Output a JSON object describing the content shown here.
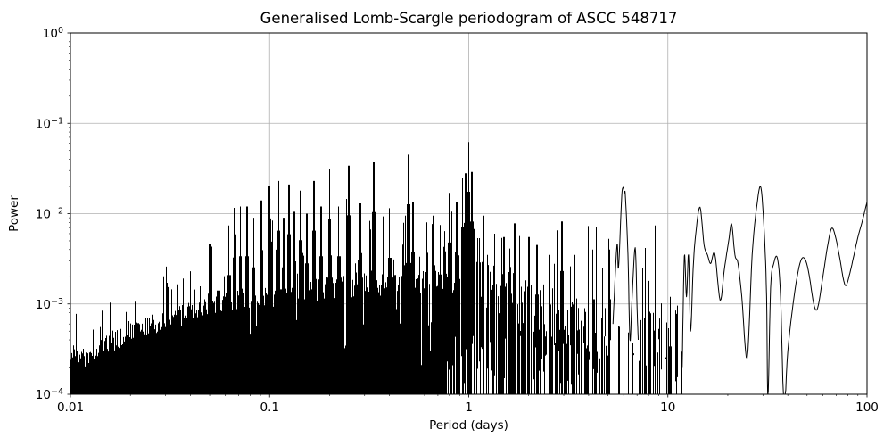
{
  "chart_data": {
    "type": "line",
    "title": "Generalised Lomb-Scargle periodogram of ASCC 548717",
    "xlabel": "Period (days)",
    "ylabel": "Power",
    "xscale": "log",
    "yscale": "log",
    "xlim": [
      0.01,
      100
    ],
    "ylim": [
      0.0001,
      1
    ],
    "grid": true,
    "legend": false,
    "line_color": "#000000",
    "grid_color": "#b0b0b0",
    "background": "#ffffff",
    "xticks": {
      "values": [
        0.01,
        0.1,
        1,
        10,
        100
      ],
      "labels": [
        "0.01",
        "0.1",
        "1",
        "10",
        "100"
      ]
    },
    "yticks": {
      "exponents": [
        0,
        -1,
        -2,
        -3,
        -4
      ],
      "labels": [
        "10⁰",
        "10⁻¹",
        "10⁻²",
        "10⁻³",
        "10⁻⁴"
      ]
    },
    "peaks": [
      {
        "period": 0.04,
        "power": 0.0023
      },
      {
        "period": 0.05,
        "power": 0.0046
      },
      {
        "period": 0.0556,
        "power": 0.005
      },
      {
        "period": 0.0625,
        "power": 0.0074
      },
      {
        "period": 0.0667,
        "power": 0.0116
      },
      {
        "period": 0.0714,
        "power": 0.012
      },
      {
        "period": 0.0769,
        "power": 0.012
      },
      {
        "period": 0.0833,
        "power": 0.009
      },
      {
        "period": 0.0909,
        "power": 0.014
      },
      {
        "period": 0.1,
        "power": 0.02
      },
      {
        "period": 0.1111,
        "power": 0.023
      },
      {
        "period": 0.1176,
        "power": 0.009
      },
      {
        "period": 0.125,
        "power": 0.021
      },
      {
        "period": 0.1333,
        "power": 0.0105
      },
      {
        "period": 0.1429,
        "power": 0.018
      },
      {
        "period": 0.1538,
        "power": 0.01
      },
      {
        "period": 0.1667,
        "power": 0.023
      },
      {
        "period": 0.1818,
        "power": 0.012
      },
      {
        "period": 0.2,
        "power": 0.031
      },
      {
        "period": 0.2222,
        "power": 0.012
      },
      {
        "period": 0.25,
        "power": 0.034
      },
      {
        "period": 0.2857,
        "power": 0.013
      },
      {
        "period": 0.3333,
        "power": 0.037
      },
      {
        "period": 0.4,
        "power": 0.0115
      },
      {
        "period": 0.48,
        "power": 0.0095
      },
      {
        "period": 0.5,
        "power": 0.045
      },
      {
        "period": 0.525,
        "power": 0.0135
      },
      {
        "period": 0.615,
        "power": 0.008
      },
      {
        "period": 0.6667,
        "power": 0.0095
      },
      {
        "period": 0.72,
        "power": 0.0075
      },
      {
        "period": 0.8,
        "power": 0.017
      },
      {
        "period": 0.87,
        "power": 0.0135
      },
      {
        "period": 0.93,
        "power": 0.025
      },
      {
        "period": 0.965,
        "power": 0.028
      },
      {
        "period": 1.0,
        "power": 0.062
      },
      {
        "period": 1.035,
        "power": 0.029
      },
      {
        "period": 1.075,
        "power": 0.024
      },
      {
        "period": 1.12,
        "power": 0.019
      },
      {
        "period": 1.2,
        "power": 0.0095
      },
      {
        "period": 1.35,
        "power": 0.006
      },
      {
        "period": 1.5,
        "power": 0.0055
      },
      {
        "period": 1.7,
        "power": 0.0078
      },
      {
        "period": 2.0,
        "power": 0.0055
      },
      {
        "period": 2.2,
        "power": 0.0045
      },
      {
        "period": 2.55,
        "power": 0.0035
      },
      {
        "period": 2.94,
        "power": 0.0082
      },
      {
        "period": 3.4,
        "power": 0.0035
      },
      {
        "period": 4.2,
        "power": 0.004
      },
      {
        "period": 4.7,
        "power": 0.0025
      },
      {
        "period": 5.1,
        "power": 0.004
      },
      {
        "period": 7.5,
        "power": 0.0025
      },
      {
        "period": 8.0,
        "power": 0.0018
      },
      {
        "period": 8.7,
        "power": 0.0018
      },
      {
        "period": 9.4,
        "power": 0.0036
      },
      {
        "period": 10.3,
        "power": 0.0012
      },
      {
        "period": 10.8,
        "power": 0.003
      },
      {
        "period": 11.3,
        "power": 0.0034
      }
    ],
    "six_day_peak": [
      [
        5.3,
        0.0006
      ],
      [
        5.55,
        0.0045
      ],
      [
        5.65,
        0.0025
      ],
      [
        5.85,
        0.014
      ],
      [
        5.95,
        0.0195
      ],
      [
        6.05,
        0.017
      ],
      [
        6.12,
        0.0155
      ],
      [
        6.3,
        0.0035
      ],
      [
        6.45,
        0.0004
      ],
      [
        6.6,
        0.0011
      ],
      [
        6.85,
        0.0042
      ],
      [
        7.0,
        0.0009
      ],
      [
        7.1,
        0.0004
      ]
    ],
    "smooth_tail": [
      [
        11.8,
        0.0002
      ],
      [
        12.1,
        0.0034
      ],
      [
        12.4,
        0.0012
      ],
      [
        12.7,
        0.0035
      ],
      [
        13.0,
        0.0005
      ],
      [
        13.4,
        0.0025
      ],
      [
        13.8,
        0.006
      ],
      [
        14.5,
        0.0118
      ],
      [
        15.2,
        0.0045
      ],
      [
        15.8,
        0.0035
      ],
      [
        16.4,
        0.0028
      ],
      [
        17.2,
        0.0036
      ],
      [
        18.3,
        0.0011
      ],
      [
        19.2,
        0.0024
      ],
      [
        20.2,
        0.005
      ],
      [
        20.9,
        0.0077
      ],
      [
        21.7,
        0.0035
      ],
      [
        22.5,
        0.0028
      ],
      [
        23.5,
        0.0012
      ],
      [
        25.0,
        0.00025
      ],
      [
        26.5,
        0.0035
      ],
      [
        28.0,
        0.0125
      ],
      [
        29.3,
        0.0195
      ],
      [
        30.5,
        0.006
      ],
      [
        31.3,
        0.0012
      ],
      [
        31.8,
        9e-05
      ],
      [
        32.8,
        0.0015
      ],
      [
        34.0,
        0.0028
      ],
      [
        35.5,
        0.0032
      ],
      [
        36.8,
        0.0012
      ],
      [
        38.3,
        7e-05
      ],
      [
        40.0,
        0.0003
      ],
      [
        43.0,
        0.0012
      ],
      [
        46.0,
        0.0028
      ],
      [
        48.5,
        0.0032
      ],
      [
        51.0,
        0.0022
      ],
      [
        54.0,
        0.001
      ],
      [
        56.5,
        0.0009
      ],
      [
        60.0,
        0.002
      ],
      [
        63.5,
        0.0045
      ],
      [
        66.5,
        0.0069
      ],
      [
        69.5,
        0.0055
      ],
      [
        73.0,
        0.0032
      ],
      [
        76.0,
        0.0019
      ],
      [
        78.5,
        0.0016
      ],
      [
        82.0,
        0.0022
      ],
      [
        86.0,
        0.0035
      ],
      [
        90.0,
        0.0055
      ],
      [
        95.0,
        0.0085
      ],
      [
        100.0,
        0.0135
      ]
    ],
    "noise_floor": [
      [
        0.01,
        0.0003
      ],
      [
        0.012,
        0.00026
      ],
      [
        0.016,
        0.00038
      ],
      [
        0.02,
        0.0005
      ],
      [
        0.025,
        0.00058
      ],
      [
        0.032,
        0.00068
      ],
      [
        0.04,
        0.0008
      ],
      [
        0.05,
        0.00095
      ],
      [
        0.065,
        0.0011
      ],
      [
        0.08,
        0.0012
      ],
      [
        0.1,
        0.0013
      ],
      [
        0.13,
        0.00135
      ],
      [
        0.18,
        0.0014
      ],
      [
        0.25,
        0.0015
      ],
      [
        0.35,
        0.0016
      ],
      [
        0.5,
        0.0017
      ],
      [
        0.65,
        0.0018
      ],
      [
        0.8,
        0.0018
      ],
      [
        0.95,
        0.002
      ],
      [
        1.1,
        0.0018
      ],
      [
        1.4,
        0.0012
      ],
      [
        2.0,
        0.0009
      ],
      [
        3.0,
        0.0007
      ],
      [
        4.5,
        0.0005
      ],
      [
        6.0,
        0.0004
      ],
      [
        8.0,
        0.0004
      ],
      [
        11.8,
        0.0004
      ]
    ],
    "dense_region_max_period": 11.8
  }
}
